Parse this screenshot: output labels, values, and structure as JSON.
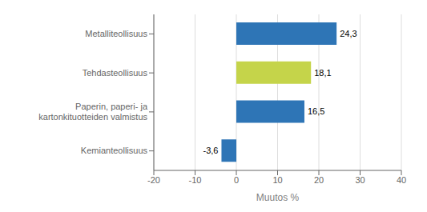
{
  "chart_data": {
    "type": "bar",
    "orientation": "horizontal",
    "categories": [
      "Metalliteollisuus",
      "Tehdasteollisuus",
      "Paperin, paperi- ja kartonkituotteiden valmistus",
      "Kemianteollisuus"
    ],
    "values": [
      24.3,
      18.1,
      16.5,
      -3.6
    ],
    "value_labels": [
      "24,3",
      "18,1",
      "16,5",
      "-3,6"
    ],
    "data_labels": true,
    "colors": [
      "#2E75B6",
      "#C5D44A",
      "#2E75B6",
      "#2E75B6"
    ],
    "xlabel": "Muutos %",
    "xlim": [
      -20,
      40
    ],
    "xticks": [
      -20,
      -10,
      0,
      10,
      20,
      30,
      40
    ],
    "grid": true
  }
}
